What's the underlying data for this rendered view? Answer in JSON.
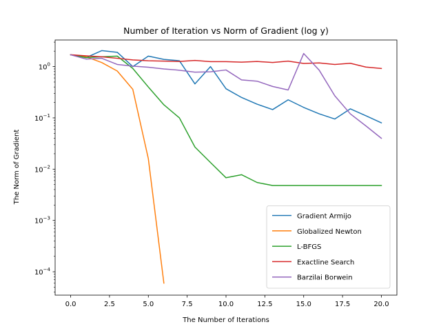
{
  "chart_data": {
    "type": "line",
    "title": "Number of Iteration vs Norm of Gradient (log y)",
    "xlabel": "The Number of Iterations",
    "ylabel": "The Norm of Gradient",
    "yscale": "log",
    "xlim": [
      -1,
      21
    ],
    "ylim": [
      3.5e-05,
      3.3
    ],
    "xticks": [
      0,
      2.5,
      5,
      7.5,
      10,
      12.5,
      15,
      17.5,
      20
    ],
    "xtick_labels": [
      "0.0",
      "2.5",
      "5.0",
      "7.5",
      "10.0",
      "12.5",
      "15.0",
      "17.5",
      "20.0"
    ],
    "yticks": [
      0.0001,
      0.001,
      0.01,
      0.1,
      1
    ],
    "ytick_labels": [
      [
        "10",
        "−4"
      ],
      [
        "10",
        "−3"
      ],
      [
        "10",
        "−2"
      ],
      [
        "10",
        "−1"
      ],
      [
        "10",
        "0"
      ]
    ],
    "grid": false,
    "legend_position": "lower right",
    "series": [
      {
        "name": "Gradient Armijo",
        "color": "#1f77b4",
        "x": [
          0,
          1,
          2,
          3,
          4,
          5,
          6,
          7,
          8,
          9,
          10,
          11,
          12,
          13,
          14,
          15,
          16,
          17,
          18,
          19,
          20
        ],
        "y": [
          1.7,
          1.5,
          2.05,
          1.9,
          1.0,
          1.6,
          1.38,
          1.3,
          0.46,
          1.0,
          0.37,
          0.25,
          0.185,
          0.145,
          0.225,
          0.16,
          0.12,
          0.095,
          0.15,
          0.11,
          0.08
        ]
      },
      {
        "name": "Globalized Newton",
        "color": "#ff7f0e",
        "x": [
          0,
          1,
          2,
          3,
          4,
          5,
          6
        ],
        "y": [
          1.7,
          1.55,
          1.2,
          0.82,
          0.36,
          0.016,
          6e-05
        ]
      },
      {
        "name": "L-BFGS",
        "color": "#2ca02c",
        "x": [
          0,
          1,
          2,
          3,
          4,
          5,
          6,
          7,
          8,
          9,
          10,
          11,
          12,
          13,
          14,
          15,
          16,
          17,
          18,
          19,
          20
        ],
        "y": [
          1.7,
          1.5,
          1.55,
          1.6,
          0.92,
          0.4,
          0.18,
          0.1,
          0.027,
          0.0135,
          0.0068,
          0.0078,
          0.0055,
          0.0048,
          0.0048,
          0.0048,
          0.0048,
          0.0048,
          0.0048,
          0.0048,
          0.0048
        ]
      },
      {
        "name": "Exactline Search",
        "color": "#d62728",
        "x": [
          0,
          1,
          2,
          3,
          4,
          5,
          6,
          7,
          8,
          9,
          10,
          11,
          12,
          13,
          14,
          15,
          16,
          17,
          18,
          19,
          20
        ],
        "y": [
          1.7,
          1.62,
          1.55,
          1.45,
          1.35,
          1.3,
          1.28,
          1.26,
          1.32,
          1.25,
          1.25,
          1.22,
          1.26,
          1.2,
          1.28,
          1.15,
          1.18,
          1.1,
          1.16,
          0.98,
          0.92
        ]
      },
      {
        "name": "Barzilai Borwein",
        "color": "#9467bd",
        "x": [
          0,
          1,
          2,
          3,
          4,
          5,
          6,
          7,
          8,
          9,
          10,
          11,
          12,
          13,
          14,
          15,
          16,
          17,
          18,
          19,
          20
        ],
        "y": [
          1.7,
          1.4,
          1.45,
          1.1,
          1.02,
          0.97,
          0.9,
          0.85,
          0.78,
          0.79,
          0.86,
          0.55,
          0.52,
          0.41,
          0.35,
          1.8,
          0.85,
          0.27,
          0.12,
          0.07,
          0.04
        ]
      }
    ]
  }
}
